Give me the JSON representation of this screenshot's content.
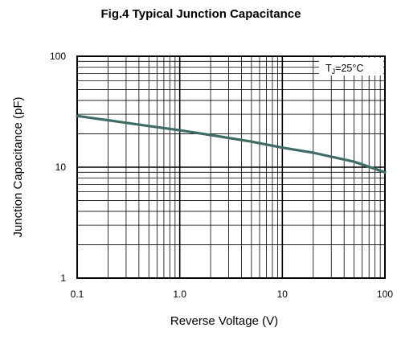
{
  "chart_data": {
    "type": "line",
    "title": "Fig.4  Typical Junction Capacitance",
    "xlabel": "Reverse  Voltage (V)",
    "ylabel": "Junction Capacitance (pF)",
    "x_scale": "log",
    "y_scale": "log",
    "xlim": [
      0.1,
      100
    ],
    "ylim": [
      1,
      100
    ],
    "grid": true,
    "x_ticks": [
      "0.1",
      "1.0",
      "10",
      "100"
    ],
    "y_ticks": [
      "1",
      "10",
      "100"
    ],
    "annotation": {
      "prefix": "T",
      "subscript": "J",
      "suffix": "=25°C"
    },
    "series": [
      {
        "color": "#3f6b66",
        "x": [
          0.1,
          0.2,
          0.5,
          1,
          2,
          5,
          10,
          20,
          50,
          100
        ],
        "y": [
          29,
          26.5,
          23.5,
          21.5,
          19.5,
          17,
          15,
          13.5,
          11.2,
          9
        ]
      }
    ]
  }
}
